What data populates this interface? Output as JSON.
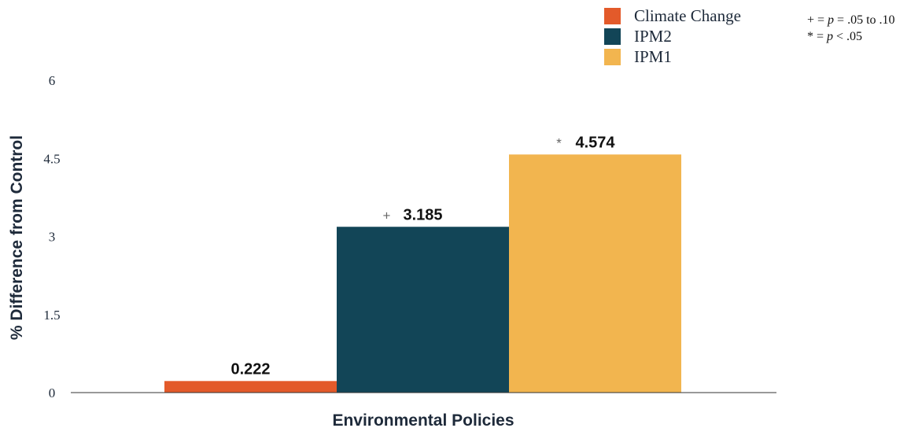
{
  "chart_data": {
    "type": "bar",
    "title": "",
    "xlabel": "Environmental Policies",
    "ylabel": "% Difference from Control",
    "ylim": [
      0,
      6
    ],
    "yticks": [
      "0",
      "1.5",
      "3",
      "4.5",
      "6"
    ],
    "grid": false,
    "legend_position": "top-right",
    "series": [
      {
        "name": "Climate Change",
        "value": 0.222,
        "label": "0.222",
        "sig": "",
        "color": "#e35a2a"
      },
      {
        "name": "IPM2",
        "value": 3.185,
        "label": "3.185",
        "sig": "+",
        "color": "#124557"
      },
      {
        "name": "IPM1",
        "value": 4.574,
        "label": "4.574",
        "sig": "*",
        "color": "#f2b54f"
      }
    ]
  },
  "significance_note": {
    "line1": {
      "prefix": "+ = ",
      "p": "p",
      "suffix": " = .05 to .10"
    },
    "line2": {
      "prefix": "* = ",
      "p": "p",
      "suffix": " < .05"
    }
  }
}
